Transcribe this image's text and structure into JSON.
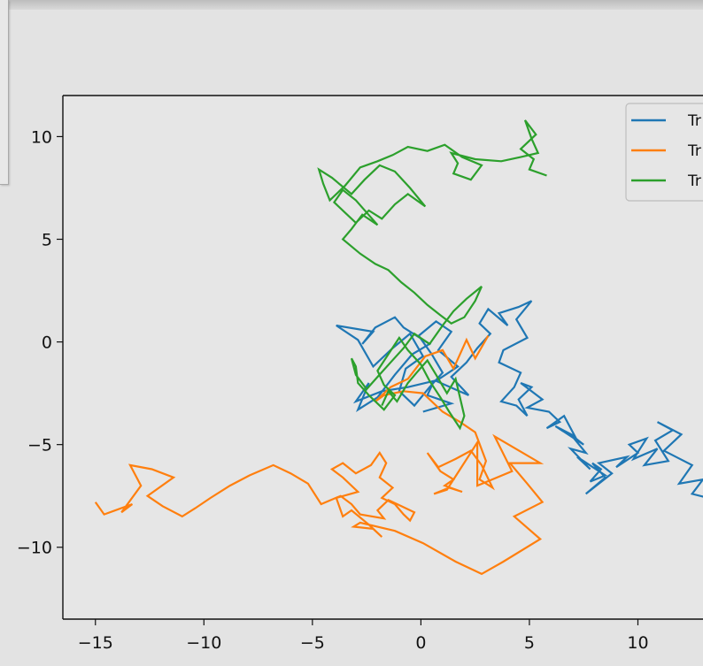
{
  "chart_data": {
    "type": "line",
    "title": "",
    "xlabel": "",
    "ylabel": "",
    "xlim": [
      -16.5,
      13
    ],
    "ylim": [
      -13.5,
      12
    ],
    "x_ticks": [
      -15,
      -10,
      -5,
      0,
      5,
      10
    ],
    "y_ticks": [
      -10,
      -5,
      0,
      5,
      10
    ],
    "x_tick_labels": [
      "−15",
      "−10",
      "−5",
      "0",
      "5",
      "10"
    ],
    "y_tick_labels": [
      "−10",
      "−5",
      "0",
      "5",
      "10"
    ],
    "grid": false,
    "legend": {
      "placement": "top-right",
      "entries": [
        "Tr",
        "Tr",
        "Tr"
      ]
    },
    "series": [
      {
        "color": "#1f77b4",
        "x": [
          0.1,
          1.4,
          0.3,
          0.6,
          -0.6,
          -1.8,
          -3.0,
          -2.4,
          -2.9,
          -2.0,
          -1.2,
          -0.4,
          0.4,
          -0.8,
          -1.2,
          -2.1,
          -2.7,
          -2.2,
          -3.9,
          -2.9,
          -2.2,
          -1.3,
          -0.5,
          0.1,
          -0.7,
          -1.0,
          -0.3,
          0.4,
          1.0,
          0.5,
          -0.1,
          0.7,
          1.4,
          0.8,
          1.7,
          0.7,
          2.2,
          1.4,
          2.1,
          2.6,
          3.2,
          2.7,
          3.1,
          4.0,
          3.6,
          4.5,
          5.1,
          4.4,
          4.9,
          3.8,
          3.6,
          4.6,
          4.3,
          3.7,
          4.4,
          4.9,
          4.5,
          5.1,
          4.6,
          5.6,
          4.9,
          5.9,
          6.4,
          5.8,
          6.6,
          7.1,
          6.2,
          7.5,
          6.9,
          7.6,
          6.9,
          7.8,
          7.2,
          8.5,
          7.8,
          8.3,
          7.9,
          8.5,
          7.6,
          8.8,
          8.2,
          9.5,
          9.0,
          10.0,
          9.6,
          10.4,
          9.8,
          10.9,
          10.3,
          11.4,
          10.8,
          11.6,
          10.9,
          12.0,
          11.2,
          12.5,
          11.9,
          13.0,
          12.5,
          13.6
        ],
        "y": [
          -3.4,
          -3.0,
          -2.6,
          -1.9,
          -2.2,
          -2.4,
          -2.9,
          -2.0,
          -3.3,
          -2.7,
          -1.6,
          -0.6,
          -0.1,
          0.7,
          1.2,
          0.7,
          -0.1,
          0.5,
          0.8,
          0.1,
          -1.2,
          -0.3,
          0.4,
          -0.7,
          -1.3,
          -2.4,
          -3.1,
          -2.2,
          -1.5,
          -0.6,
          0.3,
          1.0,
          0.5,
          -0.4,
          -1.2,
          -1.9,
          -2.6,
          -1.7,
          -1.0,
          -0.3,
          0.4,
          0.9,
          1.6,
          0.8,
          1.4,
          1.7,
          2.0,
          1.1,
          0.2,
          -0.4,
          -1.0,
          -1.5,
          -2.2,
          -2.9,
          -3.1,
          -3.6,
          -2.8,
          -2.2,
          -2.0,
          -2.8,
          -3.2,
          -3.4,
          -3.9,
          -4.2,
          -3.6,
          -4.6,
          -4.1,
          -5.0,
          -4.5,
          -5.4,
          -5.2,
          -6.2,
          -5.6,
          -6.5,
          -6.8,
          -6.2,
          -5.9,
          -6.6,
          -7.4,
          -6.4,
          -5.9,
          -5.6,
          -6.1,
          -5.4,
          -5.0,
          -4.7,
          -5.7,
          -5.2,
          -6.0,
          -5.8,
          -4.8,
          -4.3,
          -3.9,
          -4.5,
          -5.3,
          -6.0,
          -6.9,
          -6.7,
          -7.4,
          -7.7
        ]
      },
      {
        "color": "#ff7f0e",
        "x": [
          3.1,
          2.5,
          2.1,
          1.5,
          1.0,
          0.2,
          -0.6,
          -1.4,
          -2.1,
          -1.7,
          -0.8,
          0.1,
          1.0,
          1.8,
          2.5,
          3.0,
          2.7,
          3.3,
          2.8,
          2.3,
          1.6,
          0.8,
          0.3,
          0.9,
          1.5,
          1.1,
          1.9,
          1.3,
          0.6,
          1.2,
          2.6,
          2.6,
          2.6,
          4.2,
          3.4,
          5.5,
          4.1,
          4.9,
          5.6,
          4.3,
          5.5,
          3.8,
          2.8,
          1.6,
          0.1,
          -1.2,
          -2.8,
          -3.1,
          -2.2,
          -1.8,
          -2.4,
          -3.2,
          -3.6,
          -3.9,
          -2.9,
          -3.6,
          -4.1,
          -3.6,
          -3.0,
          -2.3,
          -1.9,
          -1.6,
          -1.9,
          -1.3,
          -1.8,
          -1.2,
          -0.8,
          -0.5,
          -0.3,
          -0.9,
          -1.5,
          -2.0,
          -1.7,
          -2.8,
          -3.2,
          -3.7,
          -4.6,
          -5.2,
          -6.0,
          -6.8,
          -7.9,
          -8.8,
          -9.7,
          -10.4,
          -11.0,
          -11.9,
          -12.6,
          -11.4,
          -12.4,
          -13.4,
          -12.9,
          -13.8,
          -13.3,
          -14.6,
          -15.0
        ],
        "y": [
          0.3,
          -0.8,
          0.1,
          -1.3,
          -0.4,
          -0.7,
          -1.8,
          -2.2,
          -2.9,
          -2.6,
          -2.4,
          -2.5,
          -3.4,
          -3.9,
          -4.4,
          -5.8,
          -6.7,
          -7.1,
          -6.0,
          -5.3,
          -5.7,
          -6.1,
          -5.4,
          -6.3,
          -6.7,
          -7.0,
          -7.3,
          -7.1,
          -7.4,
          -7.2,
          -4.9,
          -6.7,
          -7.0,
          -6.3,
          -4.6,
          -5.9,
          -5.9,
          -6.9,
          -7.8,
          -8.5,
          -9.6,
          -10.7,
          -11.3,
          -10.7,
          -9.8,
          -9.2,
          -8.8,
          -9.0,
          -9.1,
          -9.5,
          -8.9,
          -8.2,
          -8.5,
          -7.6,
          -7.3,
          -6.6,
          -6.2,
          -5.9,
          -6.4,
          -6.0,
          -5.4,
          -5.9,
          -6.6,
          -7.1,
          -7.6,
          -7.9,
          -8.4,
          -8.7,
          -8.3,
          -8.0,
          -7.7,
          -8.2,
          -8.6,
          -8.4,
          -7.9,
          -7.5,
          -7.9,
          -6.9,
          -6.4,
          -6.0,
          -6.5,
          -7.0,
          -7.6,
          -8.1,
          -8.5,
          -8.0,
          -7.5,
          -6.6,
          -6.2,
          -6.0,
          -7.0,
          -8.3,
          -7.9,
          -8.4,
          -7.8
        ]
      },
      {
        "color": "#2ca02c",
        "x": [
          -1.8,
          -1.5,
          -1.1,
          -0.6,
          -0.2,
          0.3,
          0.7,
          1.2,
          1.6,
          2.0,
          1.8,
          1.3,
          0.9,
          0.4,
          0.0,
          -0.6,
          -1.0,
          -1.5,
          -2.0,
          -1.7,
          -1.2,
          -1.7,
          -2.4,
          -2.9,
          -3.0,
          -3.2,
          -3.0,
          -2.5,
          -2.0,
          -1.4,
          -0.8,
          -0.3,
          0.4,
          1.0,
          1.5,
          2.1,
          2.8,
          2.5,
          2.0,
          1.4,
          0.9,
          0.3,
          -0.3,
          -0.9,
          -1.5,
          -2.1,
          -2.8,
          -3.6,
          -3.2,
          -2.7,
          -2.0,
          -2.5,
          -3.0,
          -3.6,
          -4.0,
          -3.5,
          -3.0,
          -2.4,
          -1.8,
          -1.2,
          -0.6,
          0.2,
          -0.5,
          -1.2,
          -1.9,
          -2.6,
          -3.2,
          -4.1,
          -4.7,
          -4.5,
          -4.2,
          -3.5,
          -2.8,
          -2.0,
          -1.3,
          -0.6,
          0.3,
          1.1,
          1.9,
          2.8,
          2.3,
          1.5,
          1.7,
          1.4,
          2.5,
          3.7,
          4.6,
          5.4,
          5.1,
          4.8,
          5.3,
          4.6,
          5.2,
          5.0,
          5.8
        ],
        "y": [
          -3.1,
          -2.4,
          -2.9,
          -2.0,
          -1.5,
          -0.9,
          -1.6,
          -2.5,
          -1.8,
          -3.6,
          -4.2,
          -3.4,
          -2.7,
          -1.9,
          -1.1,
          -0.4,
          0.2,
          -0.6,
          -1.4,
          -2.1,
          -2.6,
          -3.3,
          -2.6,
          -2.0,
          -1.2,
          -0.8,
          -1.6,
          -2.3,
          -1.7,
          -1.0,
          -0.3,
          0.4,
          -0.1,
          0.8,
          1.5,
          2.1,
          2.7,
          2.0,
          1.2,
          0.9,
          1.3,
          1.8,
          2.4,
          2.9,
          3.5,
          3.8,
          4.3,
          5.0,
          5.5,
          6.2,
          5.7,
          6.3,
          6.9,
          7.4,
          6.8,
          6.3,
          5.8,
          6.4,
          6.0,
          6.7,
          7.2,
          6.6,
          7.5,
          8.3,
          8.6,
          7.9,
          7.2,
          8.0,
          8.4,
          7.7,
          6.9,
          7.6,
          8.5,
          8.8,
          9.1,
          9.5,
          9.3,
          9.6,
          9.0,
          8.6,
          7.9,
          8.2,
          8.7,
          9.2,
          8.9,
          8.8,
          9.0,
          9.2,
          9.9,
          10.8,
          10.1,
          9.4,
          8.9,
          8.4,
          8.1
        ]
      }
    ]
  }
}
